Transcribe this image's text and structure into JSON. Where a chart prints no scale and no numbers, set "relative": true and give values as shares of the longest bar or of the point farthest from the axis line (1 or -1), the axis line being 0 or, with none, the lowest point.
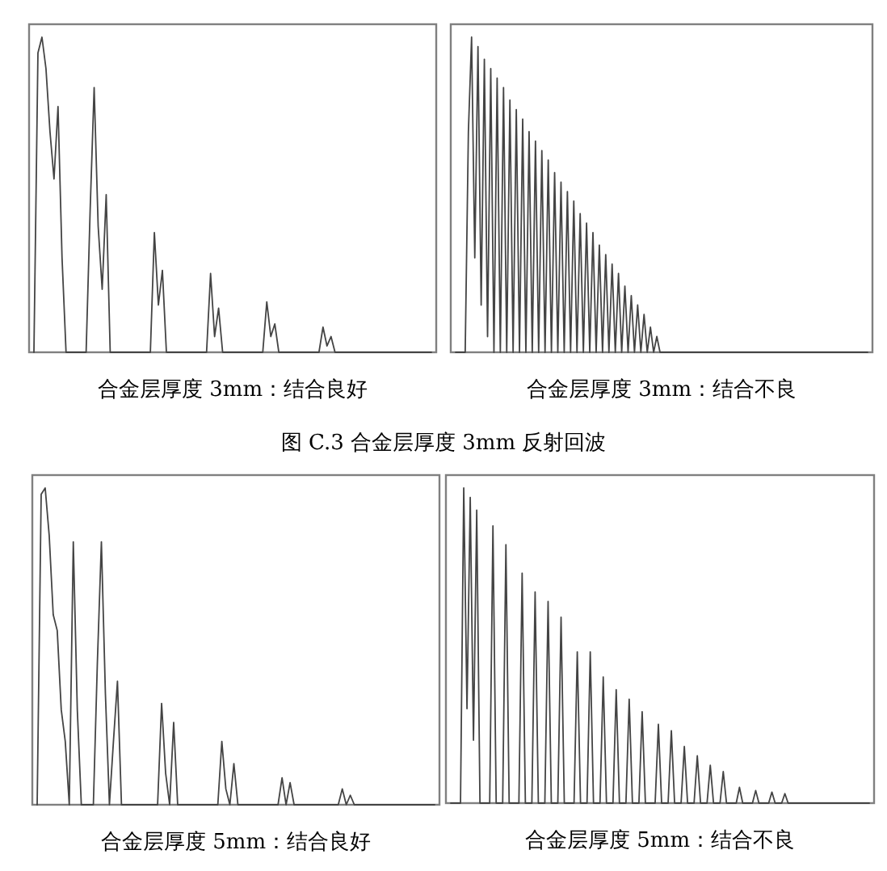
{
  "chart_data": [
    {
      "type": "line",
      "relative": true,
      "xlabel": "合金层厚度 3mm：结合良好",
      "annotations": [
        "图 C.3 合金层厚度 3mm 反射回波"
      ],
      "categories": [
        null,
        null,
        null,
        null,
        null,
        null,
        null,
        null,
        null,
        null,
        null,
        null,
        null,
        null,
        null,
        null,
        null,
        null,
        null,
        null,
        null,
        null,
        null,
        null,
        null,
        null,
        null,
        null,
        null,
        null,
        null,
        null,
        null,
        null,
        null,
        null,
        null,
        null,
        null,
        null,
        null,
        null,
        null,
        null,
        null,
        null,
        null,
        null,
        null,
        null,
        null,
        null,
        null,
        null,
        null,
        null,
        null,
        null,
        null,
        null,
        null,
        null,
        null,
        null,
        null,
        null,
        null,
        null,
        null,
        null,
        null,
        null,
        null,
        null,
        null,
        null,
        null,
        null,
        null,
        null,
        null,
        null,
        null,
        null,
        null,
        null,
        null,
        null,
        null,
        null,
        null,
        null,
        null,
        null,
        null,
        null,
        null,
        null,
        null,
        null
      ],
      "series": [
        {
          "color": "#444444",
          "values": [
            0,
            0.95,
            1.0,
            0.9,
            0.7,
            0.55,
            0.78,
            0.3,
            0,
            0,
            0,
            0,
            0,
            0,
            0.45,
            0.84,
            0.4,
            0.2,
            0.5,
            0,
            0,
            0,
            0,
            0,
            0,
            0,
            0,
            0,
            0,
            0,
            0.38,
            0.15,
            0.26,
            0,
            0,
            0,
            0,
            0,
            0,
            0,
            0,
            0,
            0,
            0,
            0.25,
            0.05,
            0.14,
            0,
            0,
            0,
            0,
            0,
            0,
            0,
            0,
            0,
            0,
            0,
            0.16,
            0.05,
            0.09,
            0,
            0,
            0,
            0,
            0,
            0,
            0,
            0,
            0,
            0,
            0,
            0.08,
            0.02,
            0.05,
            0,
            0,
            0,
            0,
            0,
            0,
            0,
            0,
            0,
            0,
            0,
            0,
            0,
            0,
            0,
            0,
            0,
            0,
            0,
            0,
            0,
            0,
            0,
            0,
            0
          ]
        }
      ]
    },
    {
      "type": "line",
      "relative": true,
      "xlabel": "合金层厚度 3mm：结合不良",
      "categories": [
        null,
        null,
        null,
        null,
        null,
        null,
        null,
        null,
        null,
        null,
        null,
        null,
        null,
        null,
        null,
        null,
        null,
        null,
        null,
        null,
        null,
        null,
        null,
        null,
        null,
        null,
        null,
        null,
        null,
        null,
        null,
        null,
        null,
        null,
        null,
        null,
        null,
        null,
        null,
        null,
        null,
        null,
        null,
        null,
        null,
        null,
        null,
        null,
        null,
        null,
        null,
        null,
        null,
        null,
        null,
        null,
        null,
        null,
        null,
        null,
        null,
        null,
        null,
        null,
        null,
        null,
        null,
        null,
        null,
        null,
        null,
        null,
        null,
        null,
        null,
        null,
        null,
        null,
        null,
        null,
        null,
        null,
        null,
        null,
        null,
        null,
        null,
        null,
        null,
        null,
        null,
        null,
        null,
        null,
        null,
        null,
        null,
        null,
        null,
        null,
        null,
        null,
        null,
        null,
        null,
        null,
        null,
        null,
        null,
        null,
        null,
        null,
        null,
        null,
        null,
        null,
        null,
        null,
        null,
        null,
        null,
        null,
        null,
        null,
        null,
        null,
        null,
        null,
        null,
        null
      ],
      "series": [
        {
          "color": "#444444",
          "values": [
            0,
            0,
            0,
            0,
            0.7,
            1.0,
            0.3,
            0.97,
            0.15,
            0.93,
            0.05,
            0.9,
            0,
            0.87,
            0,
            0.84,
            0,
            0.8,
            0,
            0.77,
            0,
            0.74,
            0,
            0.7,
            0,
            0.67,
            0,
            0.64,
            0,
            0.61,
            0,
            0.57,
            0,
            0.54,
            0,
            0.51,
            0,
            0.48,
            0,
            0.44,
            0,
            0.41,
            0,
            0.38,
            0,
            0.34,
            0,
            0.31,
            0,
            0.28,
            0,
            0.25,
            0,
            0.21,
            0,
            0.18,
            0,
            0.15,
            0,
            0.12,
            0,
            0.08,
            0,
            0.05,
            0,
            0,
            0,
            0,
            0,
            0,
            0,
            0,
            0,
            0,
            0,
            0,
            0,
            0,
            0,
            0,
            0,
            0,
            0,
            0,
            0,
            0,
            0,
            0,
            0,
            0,
            0,
            0,
            0,
            0,
            0,
            0,
            0,
            0,
            0,
            0,
            0,
            0,
            0,
            0,
            0,
            0,
            0,
            0,
            0,
            0,
            0,
            0,
            0,
            0,
            0,
            0,
            0,
            0,
            0,
            0,
            0,
            0,
            0,
            0,
            0,
            0,
            0,
            0,
            0,
            0
          ]
        }
      ]
    },
    {
      "type": "line",
      "relative": true,
      "xlabel": "合金层厚度 5mm：结合良好",
      "categories": [
        null,
        null,
        null,
        null,
        null,
        null,
        null,
        null,
        null,
        null,
        null,
        null,
        null,
        null,
        null,
        null,
        null,
        null,
        null,
        null,
        null,
        null,
        null,
        null,
        null,
        null,
        null,
        null,
        null,
        null,
        null,
        null,
        null,
        null,
        null,
        null,
        null,
        null,
        null,
        null,
        null,
        null,
        null,
        null,
        null,
        null,
        null,
        null,
        null,
        null,
        null,
        null,
        null,
        null,
        null,
        null,
        null,
        null,
        null,
        null,
        null,
        null,
        null,
        null,
        null,
        null,
        null,
        null,
        null,
        null,
        null,
        null,
        null,
        null,
        null,
        null,
        null,
        null,
        null,
        null,
        null,
        null,
        null,
        null,
        null,
        null,
        null,
        null,
        null,
        null,
        null,
        null,
        null,
        null,
        null,
        null,
        null,
        null,
        null,
        null
      ],
      "series": [
        {
          "color": "#444444",
          "values": [
            0,
            0.98,
            1.0,
            0.85,
            0.6,
            0.55,
            0.3,
            0.2,
            0,
            0.83,
            0.3,
            0,
            0,
            0,
            0,
            0.45,
            0.83,
            0.35,
            0,
            0.2,
            0.39,
            0,
            0,
            0,
            0,
            0,
            0,
            0,
            0,
            0,
            0,
            0.32,
            0.1,
            0,
            0.26,
            0,
            0,
            0,
            0,
            0,
            0,
            0,
            0,
            0,
            0,
            0,
            0.2,
            0.05,
            0,
            0.13,
            0,
            0,
            0,
            0,
            0,
            0,
            0,
            0,
            0,
            0,
            0,
            0.085,
            0,
            0.07,
            0,
            0,
            0,
            0,
            0,
            0,
            0,
            0,
            0,
            0,
            0,
            0,
            0.05,
            0,
            0.03,
            0,
            0,
            0,
            0,
            0,
            0,
            0,
            0,
            0,
            0,
            0,
            0,
            0,
            0,
            0,
            0,
            0,
            0,
            0,
            0,
            0
          ]
        }
      ]
    },
    {
      "type": "line",
      "relative": true,
      "xlabel": "合金层厚度 5mm：结合不良",
      "categories": [
        null,
        null,
        null,
        null,
        null,
        null,
        null,
        null,
        null,
        null,
        null,
        null,
        null,
        null,
        null,
        null,
        null,
        null,
        null,
        null,
        null,
        null,
        null,
        null,
        null,
        null,
        null,
        null,
        null,
        null,
        null,
        null,
        null,
        null,
        null,
        null,
        null,
        null,
        null,
        null,
        null,
        null,
        null,
        null,
        null,
        null,
        null,
        null,
        null,
        null,
        null,
        null,
        null,
        null,
        null,
        null,
        null,
        null,
        null,
        null,
        null,
        null,
        null,
        null,
        null,
        null,
        null,
        null,
        null,
        null,
        null,
        null,
        null,
        null,
        null,
        null,
        null,
        null,
        null,
        null,
        null,
        null,
        null,
        null,
        null,
        null,
        null,
        null,
        null,
        null,
        null,
        null,
        null,
        null,
        null,
        null,
        null,
        null,
        null,
        null,
        null,
        null,
        null,
        null,
        null,
        null,
        null,
        null,
        null,
        null,
        null,
        null,
        null,
        null,
        null,
        null,
        null,
        null,
        null,
        null,
        null,
        null,
        null,
        null,
        null,
        null,
        null,
        null,
        null,
        null
      ],
      "series": [
        {
          "color": "#444444",
          "values": [
            0,
            0,
            0,
            0,
            1.0,
            0.3,
            0.97,
            0.2,
            0.93,
            0,
            0,
            0,
            0,
            0.88,
            0,
            0,
            0,
            0.82,
            0,
            0,
            0,
            0,
            0.73,
            0,
            0,
            0,
            0.67,
            0,
            0,
            0,
            0.64,
            0,
            0,
            0,
            0.59,
            0,
            0,
            0,
            0,
            0.48,
            0,
            0,
            0,
            0.48,
            0,
            0,
            0,
            0.4,
            0,
            0,
            0,
            0.36,
            0,
            0,
            0,
            0.33,
            0,
            0,
            0,
            0.29,
            0,
            0,
            0,
            0,
            0.25,
            0,
            0,
            0,
            0.23,
            0,
            0,
            0,
            0.18,
            0,
            0,
            0,
            0.15,
            0,
            0,
            0,
            0.12,
            0,
            0,
            0,
            0.1,
            0,
            0,
            0,
            0,
            0.05,
            0,
            0,
            0,
            0,
            0.04,
            0,
            0,
            0,
            0,
            0.035,
            0,
            0,
            0,
            0.03,
            0,
            0,
            0,
            0,
            0,
            0,
            0,
            0,
            0,
            0,
            0,
            0,
            0,
            0,
            0,
            0,
            0,
            0,
            0,
            0,
            0,
            0,
            0,
            0,
            0,
            0
          ]
        }
      ]
    }
  ]
}
